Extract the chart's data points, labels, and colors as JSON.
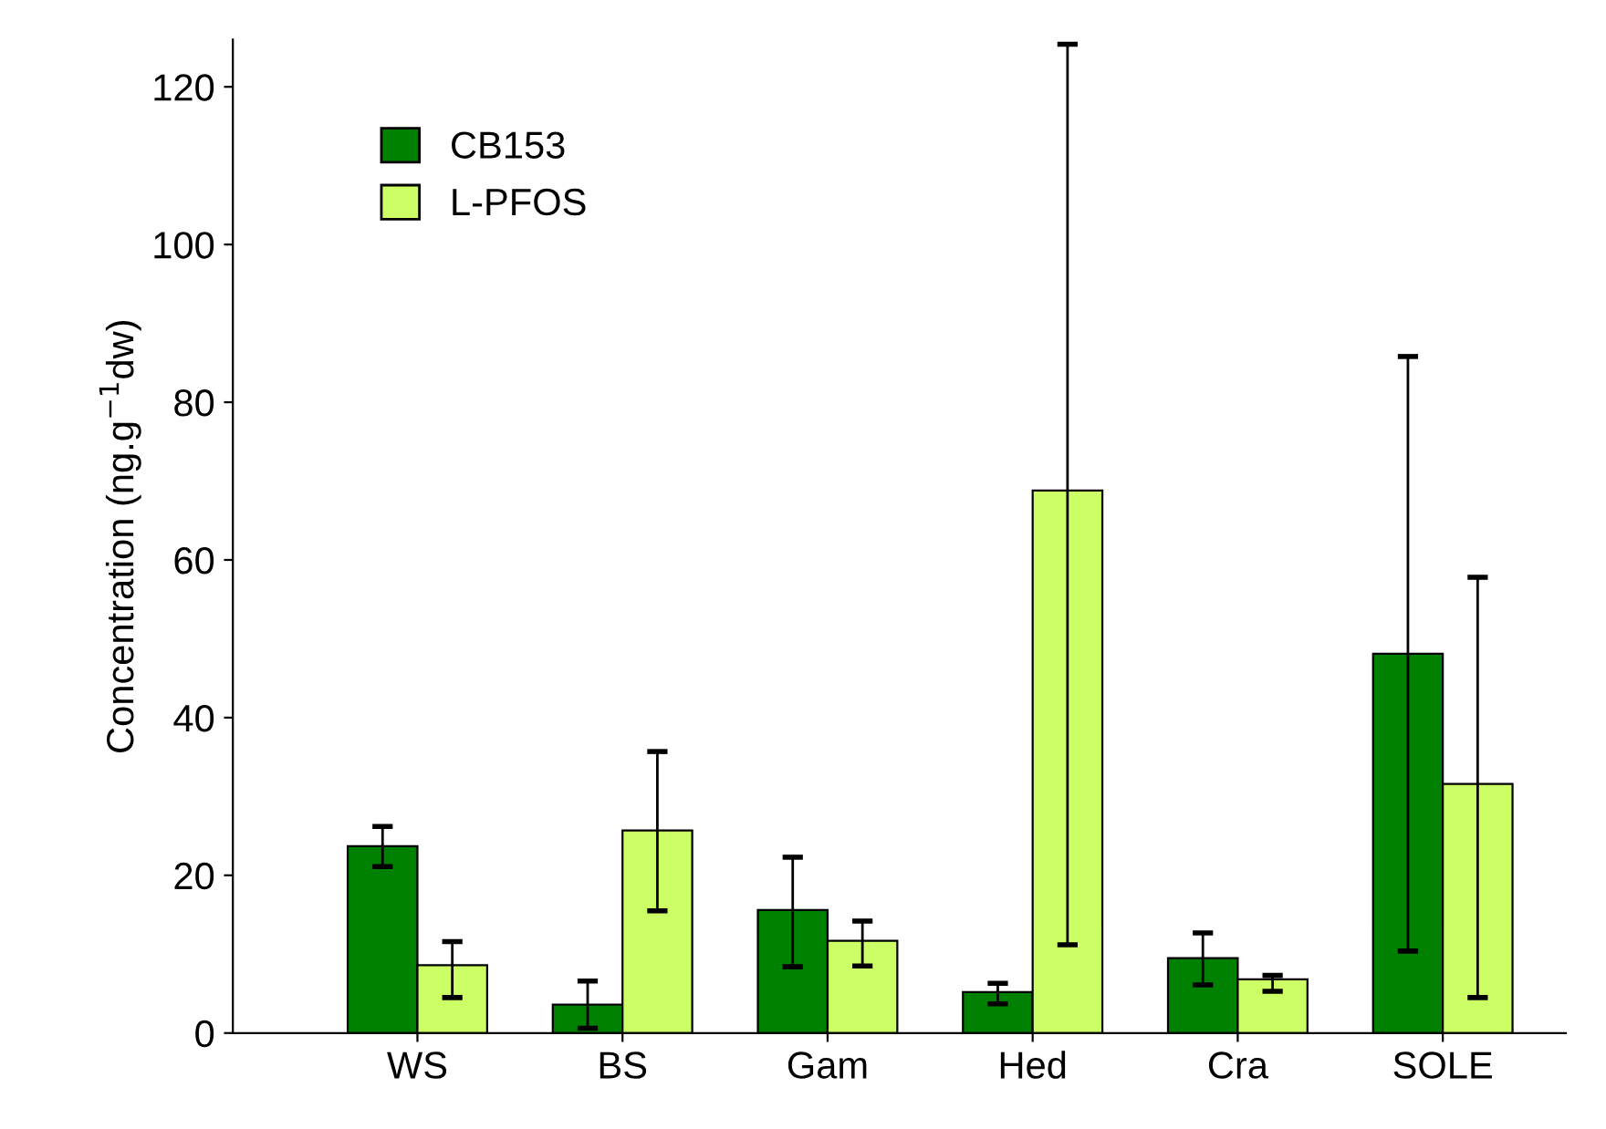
{
  "chart_data": {
    "type": "bar",
    "ylabel": "Concentration (ng.g$^{−1}$dw)",
    "categories": [
      "WS",
      "BS",
      "Gam",
      "Hed",
      "Cra",
      "SOLE"
    ],
    "series": [
      {
        "name": "CB153",
        "color": "#008000",
        "values": [
          23.7,
          3.6,
          15.6,
          5.2,
          9.5,
          48.1
        ],
        "errors": [
          [
            21.1,
            26.2
          ],
          [
            0.6,
            6.6
          ],
          [
            8.4,
            22.3
          ],
          [
            3.7,
            6.3
          ],
          [
            6.1,
            12.7
          ],
          [
            10.4,
            85.8
          ]
        ]
      },
      {
        "name": "L-PFOS",
        "color": "#ccff66",
        "values": [
          8.6,
          25.7,
          11.7,
          68.8,
          6.8,
          31.6
        ],
        "errors": [
          [
            4.5,
            11.6
          ],
          [
            15.5,
            35.7
          ],
          [
            8.5,
            14.2
          ],
          [
            11.2,
            125.4
          ],
          [
            5.3,
            7.3
          ],
          [
            4.5,
            57.8
          ]
        ]
      }
    ],
    "ylim": [
      0,
      126
    ],
    "yticks": [
      0,
      20,
      40,
      60,
      80,
      100,
      120
    ],
    "grid": false,
    "legend": "top left"
  }
}
